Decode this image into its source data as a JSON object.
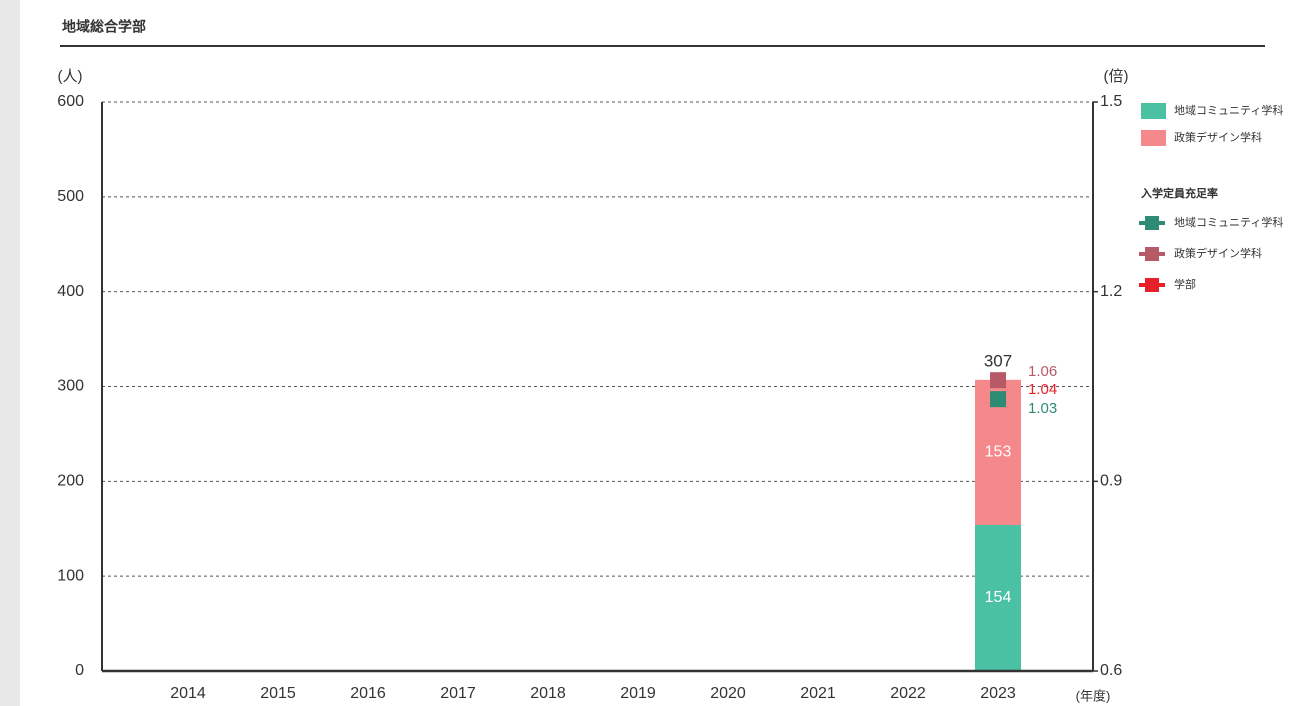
{
  "chart_data": {
    "type": "bar",
    "title": "地域総合学部",
    "ylabel": "(人)",
    "y2label": "(倍)",
    "xlabel": "(年度)",
    "categories": [
      "2014",
      "2015",
      "2016",
      "2017",
      "2018",
      "2019",
      "2020",
      "2021",
      "2022",
      "2023"
    ],
    "series": [
      {
        "name": "地域コミュニティ学科",
        "color": "#4bc1a4",
        "values": [
          null,
          null,
          null,
          null,
          null,
          null,
          null,
          null,
          null,
          154
        ]
      },
      {
        "name": "政策デザイン学科",
        "color": "#f4888a",
        "values": [
          null,
          null,
          null,
          null,
          null,
          null,
          null,
          null,
          null,
          153
        ]
      }
    ],
    "totals": [
      null,
      null,
      null,
      null,
      null,
      null,
      null,
      null,
      null,
      307
    ],
    "legend_title": "入学定員充足率",
    "line_series": [
      {
        "name": "地域コミュニティ学科",
        "color": "#2e8b74",
        "axis": "y2",
        "values": [
          null,
          null,
          null,
          null,
          null,
          null,
          null,
          null,
          null,
          1.03
        ]
      },
      {
        "name": "政策デザイン学科",
        "color": "#b55a66",
        "axis": "y2",
        "values": [
          null,
          null,
          null,
          null,
          null,
          null,
          null,
          null,
          null,
          1.06
        ]
      },
      {
        "name": "学部",
        "color": "#e8202a",
        "axis": "y2",
        "values": [
          null,
          null,
          null,
          null,
          null,
          null,
          null,
          null,
          null,
          1.04
        ]
      }
    ],
    "ylim": [
      0,
      600
    ],
    "yticks": [
      0,
      100,
      200,
      300,
      400,
      500,
      600
    ],
    "y2lim": [
      0.6,
      1.5
    ],
    "y2ticks": [
      0.6,
      0.9,
      1.2,
      1.5
    ],
    "grid": true
  }
}
